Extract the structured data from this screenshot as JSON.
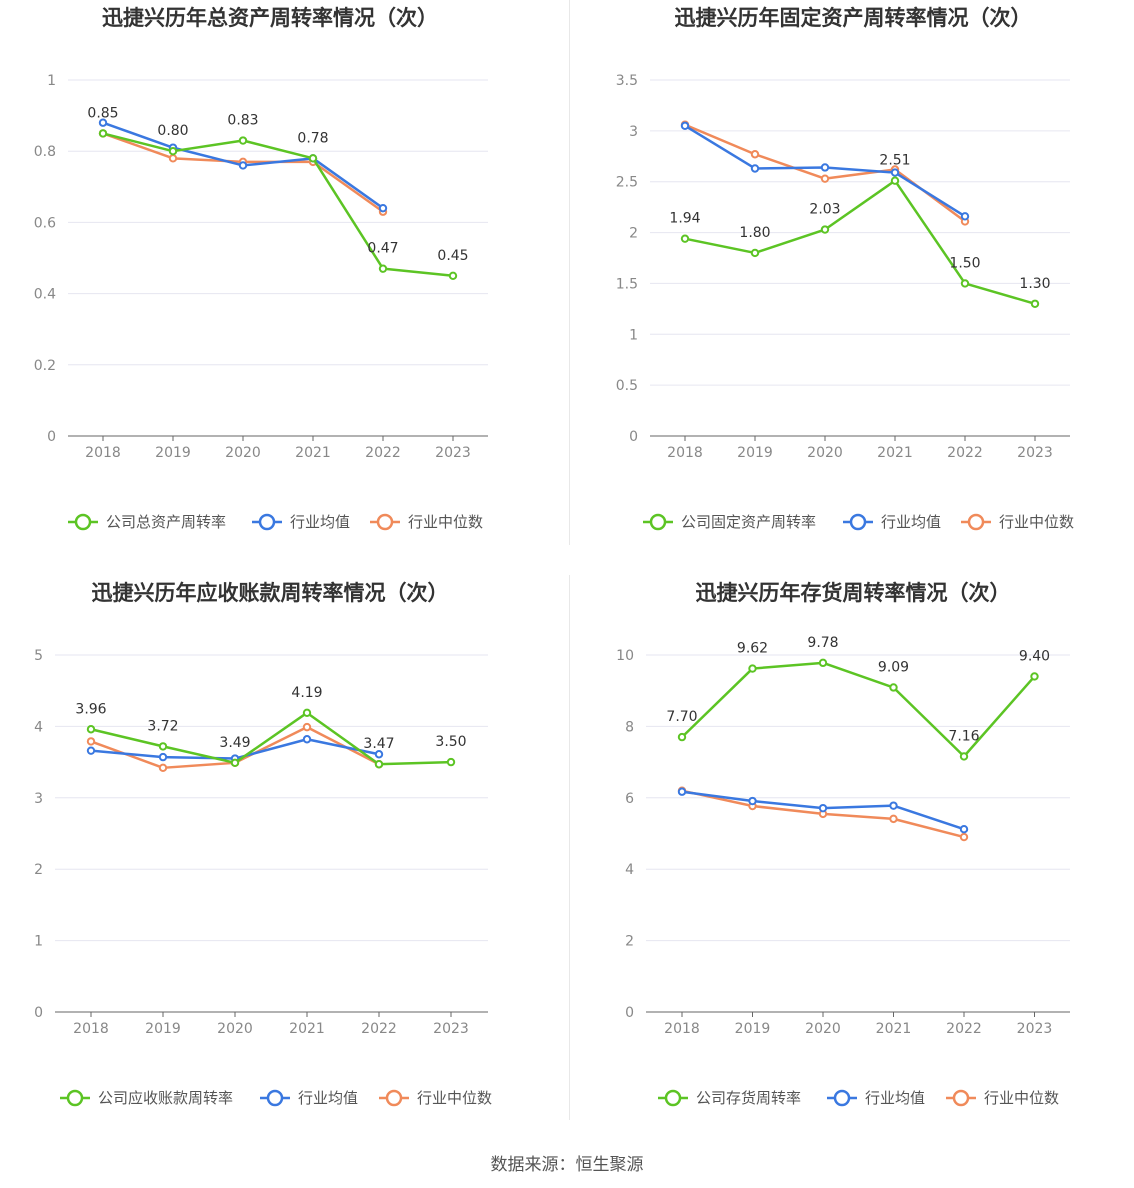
{
  "colors": {
    "company": "#5cc424",
    "avg": "#3a78e0",
    "median": "#f08a5a",
    "grid": "#e6e6f0",
    "axis": "#666666"
  },
  "source": "数据来源：恒生聚源",
  "charts": [
    {
      "title": "迅捷兴历年总资产周转率情况（次）",
      "legend": [
        "公司总资产周转率",
        "行业均值",
        "行业中位数"
      ],
      "yticks": [
        "0",
        "0.2",
        "0.4",
        "0.6",
        "0.8",
        "1"
      ],
      "labels": [
        "0.85",
        "0.80",
        "0.83",
        "0.78",
        "0.47",
        "0.45"
      ]
    },
    {
      "title": "迅捷兴历年固定资产周转率情况（次）",
      "legend": [
        "公司固定资产周转率",
        "行业均值",
        "行业中位数"
      ],
      "yticks": [
        "0",
        "0.5",
        "1",
        "1.5",
        "2",
        "2.5",
        "3",
        "3.5"
      ],
      "labels": [
        "1.94",
        "1.80",
        "2.03",
        "2.51",
        "1.50",
        "1.30"
      ]
    },
    {
      "title": "迅捷兴历年应收账款周转率情况（次）",
      "legend": [
        "公司应收账款周转率",
        "行业均值",
        "行业中位数"
      ],
      "yticks": [
        "0",
        "1",
        "2",
        "3",
        "4",
        "5"
      ],
      "labels": [
        "3.96",
        "3.72",
        "3.49",
        "4.19",
        "3.47",
        "3.50"
      ]
    },
    {
      "title": "迅捷兴历年存货周转率情况（次）",
      "legend": [
        "公司存货周转率",
        "行业均值",
        "行业中位数"
      ],
      "yticks": [
        "0",
        "2",
        "4",
        "6",
        "8",
        "10"
      ],
      "labels": [
        "7.70",
        "9.62",
        "9.78",
        "9.09",
        "7.16",
        "9.40"
      ]
    }
  ],
  "chart_data": [
    {
      "type": "line",
      "title": "迅捷兴历年总资产周转率情况（次）",
      "categories": [
        "2018",
        "2019",
        "2020",
        "2021",
        "2022",
        "2023"
      ],
      "ylim": [
        0,
        1
      ],
      "series": [
        {
          "name": "公司总资产周转率",
          "values": [
            0.85,
            0.8,
            0.83,
            0.78,
            0.47,
            0.45
          ]
        },
        {
          "name": "行业均值",
          "values": [
            0.88,
            0.81,
            0.76,
            0.78,
            0.64,
            null
          ]
        },
        {
          "name": "行业中位数",
          "values": [
            0.85,
            0.78,
            0.77,
            0.77,
            0.63,
            null
          ]
        }
      ]
    },
    {
      "type": "line",
      "title": "迅捷兴历年固定资产周转率情况（次）",
      "categories": [
        "2018",
        "2019",
        "2020",
        "2021",
        "2022",
        "2023"
      ],
      "ylim": [
        0,
        3.5
      ],
      "series": [
        {
          "name": "公司固定资产周转率",
          "values": [
            1.94,
            1.8,
            2.03,
            2.51,
            1.5,
            1.3
          ]
        },
        {
          "name": "行业均值",
          "values": [
            3.05,
            2.63,
            2.64,
            2.59,
            2.16,
            null
          ]
        },
        {
          "name": "行业中位数",
          "values": [
            3.06,
            2.77,
            2.53,
            2.62,
            2.11,
            null
          ]
        }
      ]
    },
    {
      "type": "line",
      "title": "迅捷兴历年应收账款周转率情况（次）",
      "categories": [
        "2018",
        "2019",
        "2020",
        "2021",
        "2022",
        "2023"
      ],
      "ylim": [
        0,
        5
      ],
      "series": [
        {
          "name": "公司应收账款周转率",
          "values": [
            3.96,
            3.72,
            3.49,
            4.19,
            3.47,
            3.5
          ]
        },
        {
          "name": "行业均值",
          "values": [
            3.66,
            3.57,
            3.55,
            3.82,
            3.61,
            null
          ]
        },
        {
          "name": "行业中位数",
          "values": [
            3.79,
            3.42,
            3.49,
            3.99,
            3.47,
            null
          ]
        }
      ]
    },
    {
      "type": "line",
      "title": "迅捷兴历年存货周转率情况（次）",
      "categories": [
        "2018",
        "2019",
        "2020",
        "2021",
        "2022",
        "2023"
      ],
      "ylim": [
        0,
        10
      ],
      "series": [
        {
          "name": "公司存货周转率",
          "values": [
            7.7,
            9.62,
            9.78,
            9.09,
            7.16,
            9.4
          ]
        },
        {
          "name": "行业均值",
          "values": [
            6.17,
            5.91,
            5.71,
            5.78,
            5.12,
            null
          ]
        },
        {
          "name": "行业中位数",
          "values": [
            6.2,
            5.77,
            5.55,
            5.41,
            4.9,
            null
          ]
        }
      ]
    }
  ]
}
